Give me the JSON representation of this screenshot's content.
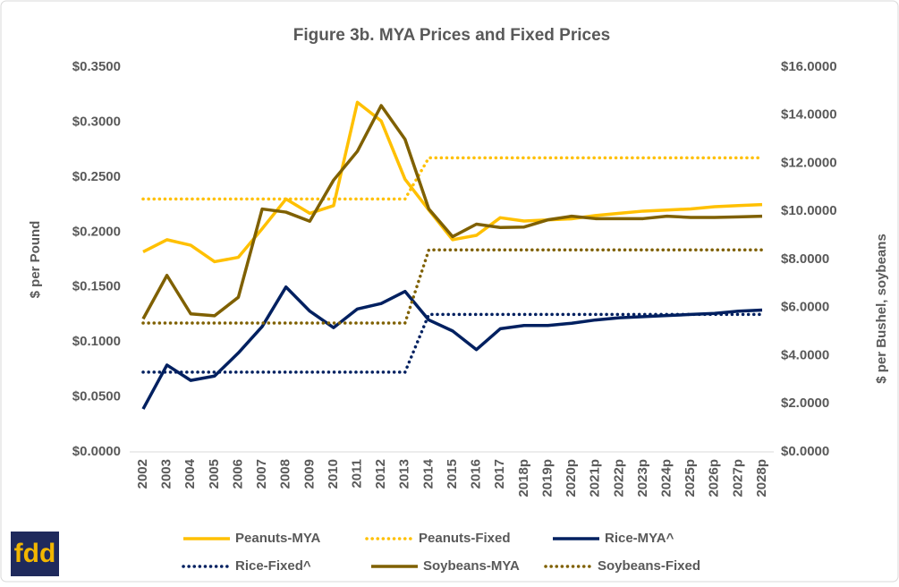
{
  "chart_data": {
    "type": "line",
    "title": "Figure 3b. MYA Prices and Fixed Prices",
    "y_label": "$ per Pound",
    "y2_label": "$ per Bushel, soybeans",
    "logo": "fdd",
    "categories": [
      "2002",
      "2003",
      "2004",
      "2005",
      "2006",
      "2007",
      "2008",
      "2009",
      "2010",
      "2011",
      "2012",
      "2013",
      "2014",
      "2015",
      "2016",
      "2017",
      "2018p",
      "2019p",
      "2020p",
      "2021p",
      "2022p",
      "2023p",
      "2024p",
      "2025p",
      "2026p",
      "2027p",
      "2028p"
    ],
    "ylim": [
      0,
      0.35
    ],
    "yticks": [
      {
        "value": 0,
        "label": "$0.0000"
      },
      {
        "value": 0.05,
        "label": "$0.0500"
      },
      {
        "value": 0.1,
        "label": "$0.1000"
      },
      {
        "value": 0.15,
        "label": "$0.1500"
      },
      {
        "value": 0.2,
        "label": "$0.2000"
      },
      {
        "value": 0.25,
        "label": "$0.2500"
      },
      {
        "value": 0.3,
        "label": "$0.3000"
      },
      {
        "value": 0.35,
        "label": "$0.3500"
      }
    ],
    "y2lim": [
      0,
      16
    ],
    "y2ticks": [
      {
        "value": 0,
        "label": "$0.0000"
      },
      {
        "value": 2,
        "label": "$2.0000"
      },
      {
        "value": 4,
        "label": "$4.0000"
      },
      {
        "value": 6,
        "label": "$6.0000"
      },
      {
        "value": 8,
        "label": "$8.0000"
      },
      {
        "value": 10,
        "label": "$10.0000"
      },
      {
        "value": 12,
        "label": "$12.0000"
      },
      {
        "value": 14,
        "label": "$14.0000"
      },
      {
        "value": 16,
        "label": "$16.0000"
      }
    ],
    "grid": false,
    "legend": "bottom",
    "series": [
      {
        "name": "Peanuts-MYA",
        "color": "#ffc000",
        "line_style": "solid",
        "axis": "y",
        "values": [
          0.182,
          0.193,
          0.188,
          0.173,
          0.177,
          0.203,
          0.23,
          0.217,
          0.224,
          0.318,
          0.301,
          0.248,
          0.22,
          0.193,
          0.197,
          0.213,
          0.21,
          0.211,
          0.212,
          0.215,
          0.217,
          0.219,
          0.22,
          0.221,
          0.223,
          0.224,
          0.225
        ]
      },
      {
        "name": "Peanuts-Fixed",
        "color": "#ffc000",
        "line_style": "dotted",
        "axis": "y",
        "values": [
          0.23,
          0.23,
          0.23,
          0.23,
          0.23,
          0.23,
          0.23,
          0.23,
          0.23,
          0.23,
          0.23,
          0.23,
          0.2675,
          0.2675,
          0.2675,
          0.2675,
          0.2675,
          0.2675,
          0.2675,
          0.2675,
          0.2675,
          0.2675,
          0.2675,
          0.2675,
          0.2675,
          0.2675,
          0.2675
        ]
      },
      {
        "name": "Rice-MYA^",
        "color": "#002060",
        "line_style": "solid",
        "axis": "y",
        "values": [
          0.039,
          0.079,
          0.065,
          0.069,
          0.09,
          0.114,
          0.15,
          0.128,
          0.113,
          0.13,
          0.135,
          0.146,
          0.12,
          0.11,
          0.093,
          0.112,
          0.115,
          0.115,
          0.117,
          0.12,
          0.122,
          0.123,
          0.124,
          0.125,
          0.126,
          0.128,
          0.129
        ]
      },
      {
        "name": "Rice-Fixed^",
        "color": "#002060",
        "line_style": "dotted",
        "axis": "y",
        "values": [
          0.0725,
          0.0725,
          0.0725,
          0.0725,
          0.0725,
          0.0725,
          0.0725,
          0.0725,
          0.0725,
          0.0725,
          0.0725,
          0.0725,
          0.125,
          0.125,
          0.125,
          0.125,
          0.125,
          0.125,
          0.125,
          0.125,
          0.125,
          0.125,
          0.125,
          0.125,
          0.125,
          0.125,
          0.125
        ]
      },
      {
        "name": "Soybeans-MYA",
        "color": "#7f6000",
        "line_style": "solid",
        "axis": "y2",
        "values": [
          5.53,
          7.34,
          5.74,
          5.66,
          6.43,
          10.1,
          9.97,
          9.59,
          11.3,
          12.5,
          14.4,
          13.0,
          10.1,
          8.95,
          9.47,
          9.33,
          9.35,
          9.65,
          9.8,
          9.7,
          9.7,
          9.7,
          9.8,
          9.75,
          9.75,
          9.77,
          9.8
        ]
      },
      {
        "name": "Soybeans-Fixed",
        "color": "#7f6000",
        "line_style": "dotted",
        "axis": "y2",
        "values": [
          5.36,
          5.36,
          5.36,
          5.36,
          5.36,
          5.36,
          5.36,
          5.36,
          5.36,
          5.36,
          5.36,
          5.36,
          8.4,
          8.4,
          8.4,
          8.4,
          8.4,
          8.4,
          8.4,
          8.4,
          8.4,
          8.4,
          8.4,
          8.4,
          8.4,
          8.4,
          8.4
        ]
      }
    ]
  }
}
